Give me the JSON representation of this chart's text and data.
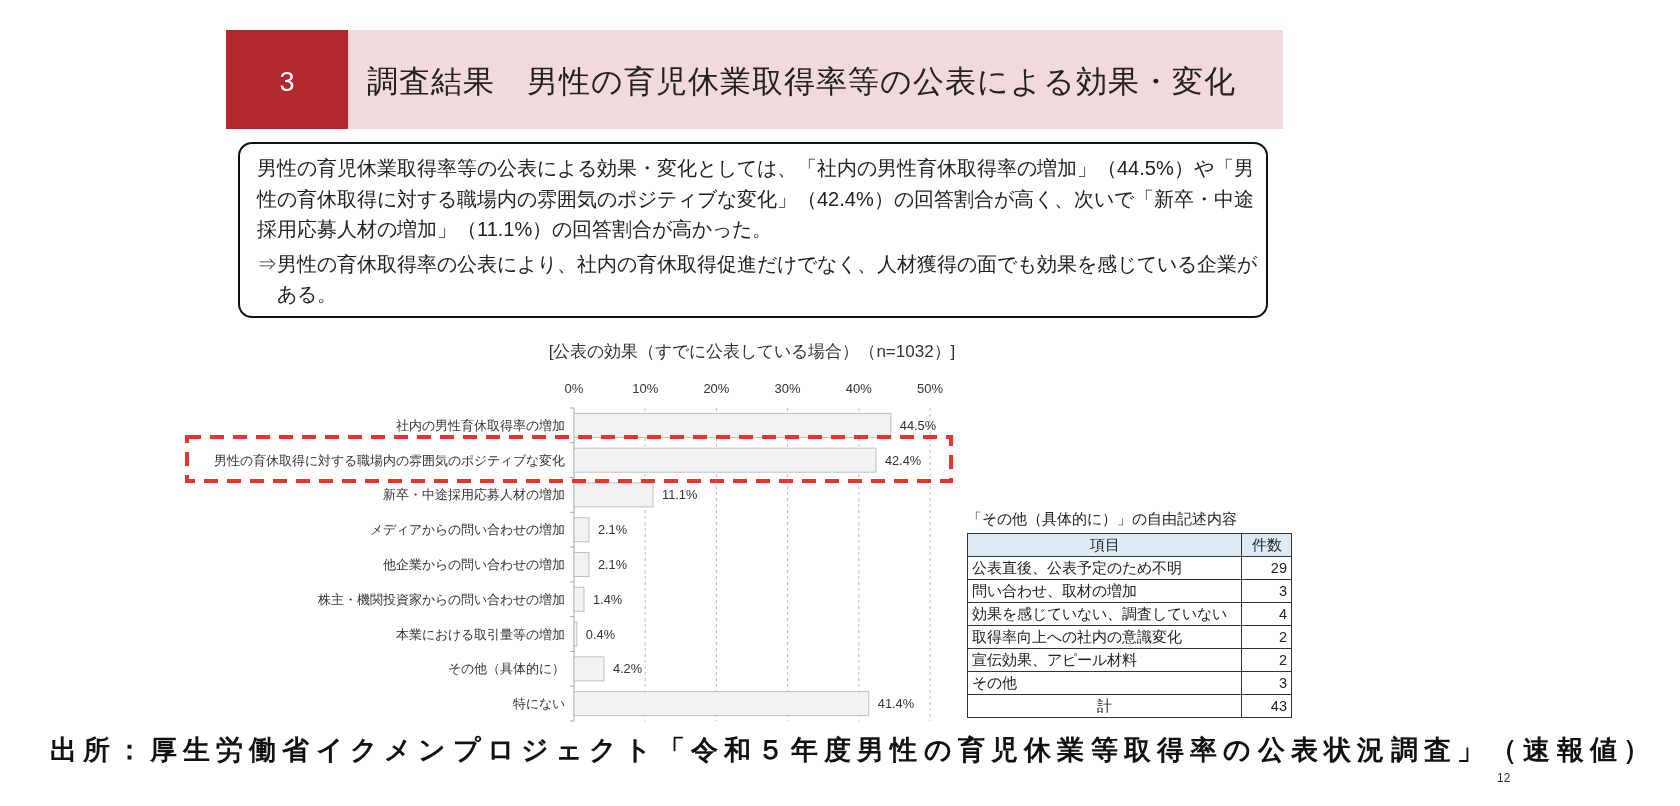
{
  "chart_data": [
    {
      "type": "other",
      "title": "調査結果　男性の育児休業取得率等の公表による効果・変化",
      "annotations": [
        "3",
        "男性の育児休業取得率等の公表による効果・変化としては、「社内の男性育休取得率の増加」（44.5%）や「男性の育休取得に対する職場内の雰囲気のポジティブな変化」（42.4%）の回答割合が高く、次いで「新卒・中途採用応募人材の増加」（11.1%）の回答割合が高かった。",
        "⇒男性の育休取得率の公表により、社内の育休取得促進だけでなく、人材獲得の面でも効果を感じている企業がある。"
      ]
    },
    {
      "type": "bar",
      "orientation": "horizontal",
      "title": "[公表の効果（すでに公表している場合）（n=1032）]",
      "categories": [
        "社内の男性育休取得率の増加",
        "男性の育休取得に対する職場内の雰囲気のポジティブな変化",
        "新卒・中途採用応募人材の増加",
        "メディアからの問い合わせの増加",
        "他企業からの問い合わせの増加",
        "株主・機関投資家からの問い合わせの増加",
        "本業における取引量等の増加",
        "その他（具体的に）",
        "特にない"
      ],
      "values": [
        44.5,
        42.4,
        11.1,
        2.1,
        2.1,
        1.4,
        0.4,
        4.2,
        41.4
      ],
      "color": "#f2f2f2",
      "value_labels": [
        "44.5%",
        "42.4%",
        "11.1%",
        "2.1%",
        "2.1%",
        "1.4%",
        "0.4%",
        "4.2%",
        "41.4%"
      ],
      "xlim": [
        0,
        50
      ],
      "xticks": [
        {
          "value": 0,
          "label": "0%"
        },
        {
          "value": 10,
          "label": "10%"
        },
        {
          "value": 20,
          "label": "20%"
        },
        {
          "value": 30,
          "label": "30%"
        },
        {
          "value": 40,
          "label": "40%"
        },
        {
          "value": 50,
          "label": "50%"
        }
      ],
      "grid": "x",
      "annotations": [
        "出所：厚生労働省イクメンプロジェクト「令和５年度男性の育児休業等取得率の公表状況調査」（速報値）",
        "12"
      ]
    },
    {
      "type": "other",
      "title": "「その他（具体的に）」の自由記述内容",
      "xlabel": "項目",
      "ylabel": "件数",
      "categories": [
        "公表直後、公表予定のため不明",
        "問い合わせ、取材の増加",
        "効果を感じていない、調査していない",
        "取得率向上への社内の意識変化",
        "宣伝効果、アピール材料",
        "その他",
        "計"
      ],
      "values": [
        29,
        3,
        4,
        2,
        2,
        3,
        43
      ],
      "data_labels": true
    }
  ]
}
